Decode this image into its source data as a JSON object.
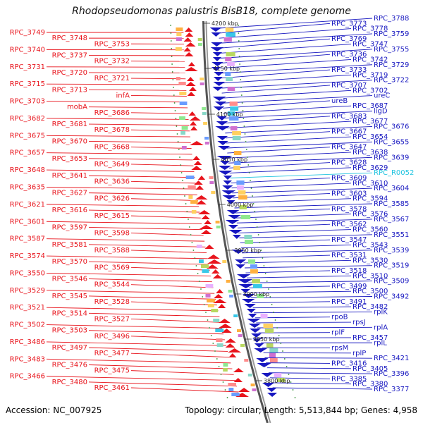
{
  "title": "Rhodopseudomonas palustris BisB18, complete genome",
  "accession": "Accession: NC_007925",
  "topology": "Topology: circular; Length: 5,513,844 bp; Genes: 4,958",
  "colors": {
    "left": "#e8141c",
    "right": "#1717c0",
    "rna": "#22c4e0",
    "ticks": "#333333"
  },
  "kbp_ticks": [
    "4200 kbp",
    "4150 kbp",
    "4100 kbp",
    "4050 kbp",
    "4000 kbp",
    "3950 kbp",
    "3900 kbp",
    "3850 kbp",
    "3800 kbp"
  ],
  "left_labels": [
    "RPC_3749",
    "RPC_3748",
    "RPC_3753",
    "RPC_3740",
    "RPC_3737",
    "RPC_3732",
    "RPC_3731",
    "RPC_3720",
    "RPC_3721",
    "RPC_3715",
    "RPC_3713",
    "infA",
    "RPC_3703",
    "mobA",
    "RPC_3686",
    "RPC_3682",
    "RPC_3681",
    "RPC_3678",
    "RPC_3675",
    "RPC_3670",
    "RPC_3668",
    "RPC_3657",
    "RPC_3653",
    "RPC_3649",
    "RPC_3648",
    "RPC_3641",
    "RPC_3636",
    "RPC_3635",
    "RPC_3627",
    "RPC_3626",
    "RPC_3621",
    "RPC_3616",
    "RPC_3615",
    "RPC_3601",
    "RPC_3597",
    "RPC_3598",
    "RPC_3587",
    "RPC_3581",
    "RPC_3588",
    "RPC_3574",
    "RPC_3570",
    "RPC_3569",
    "RPC_3550",
    "RPC_3546",
    "RPC_3544",
    "RPC_3529",
    "RPC_3545",
    "RPC_3528",
    "RPC_3521",
    "RPC_3514",
    "RPC_3527",
    "RPC_3502",
    "RPC_3503",
    "RPC_3496",
    "RPC_3486",
    "RPC_3497",
    "RPC_3477",
    "RPC_3483",
    "RPC_3476",
    "RPC_3475",
    "RPC_3466",
    "RPC_3480",
    "RPC_3461"
  ],
  "right_labels": [
    "RPC_3788",
    "RPC_3773",
    "RPC_3778",
    "RPC_3759",
    "RPC_3769",
    "RPC_3747",
    "RPC_3755",
    "RPC_3736",
    "RPC_3742",
    "RPC_3729",
    "RPC_3733",
    "RPC_3719",
    "RPC_3722",
    "RPC_3707",
    "RPC_3702",
    "ureC",
    "ureB",
    "RPC_3687",
    "ligD",
    "RPC_3683",
    "RPC_3677",
    "RPC_3676",
    "RPC_3667",
    "RPC_3654",
    "RPC_3655",
    "RPC_3647",
    "RPC_3638",
    "RPC_3639",
    "RPC_3628",
    "RPC_3629",
    "RPC_R0052",
    "RPC_3609",
    "RPC_3610",
    "RPC_3604",
    "RPC_3603",
    "RPC_3594",
    "RPC_3585",
    "RPC_3578",
    "RPC_3576",
    "RPC_3567",
    "RPC_3562",
    "RPC_3560",
    "RPC_3551",
    "RPC_3547",
    "RPC_3543",
    "RPC_3539",
    "RPC_3531",
    "RPC_3530",
    "RPC_3519",
    "RPC_3518",
    "RPC_3510",
    "RPC_3509",
    "RPC_3499",
    "RPC_3500",
    "RPC_3492",
    "RPC_3491",
    "RPC_3482",
    "rplK",
    "rpoB",
    "rpsJ",
    "rplA",
    "rplF",
    "RPC_3457",
    "rplL",
    "rpsM",
    "rplP",
    "RPC_3421",
    "RPC_3416",
    "RPC_3405",
    "RPC_3396",
    "RPC_3385",
    "RPC_3380",
    "RPC_3377"
  ]
}
